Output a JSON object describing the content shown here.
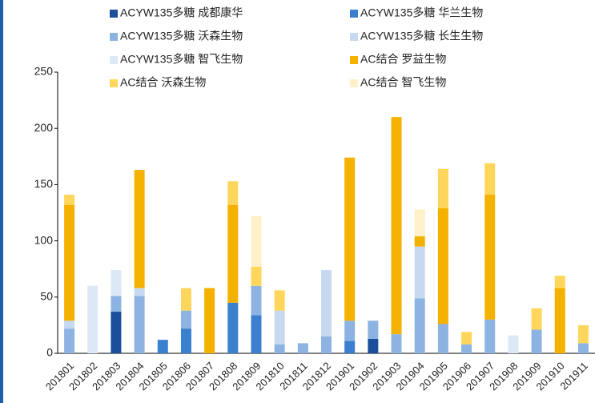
{
  "chart_data": {
    "type": "stacked_bar",
    "categories": [
      "201801",
      "201802",
      "201803",
      "201804",
      "201805",
      "201806",
      "201807",
      "201808",
      "201809",
      "201810",
      "201811",
      "201812",
      "201901",
      "201902",
      "201903",
      "201904",
      "201905",
      "201906",
      "201907",
      "201908",
      "201909",
      "201910",
      "201911"
    ],
    "series": [
      {
        "name": "ACYW135多糖 成都康华",
        "color": "#1b4f9c",
        "values": [
          0,
          0,
          37,
          0,
          0,
          0,
          0,
          0,
          0,
          0,
          0,
          0,
          0,
          13,
          0,
          0,
          0,
          0,
          0,
          0,
          0,
          0,
          0
        ]
      },
      {
        "name": "ACYW135多糖 华兰生物",
        "color": "#3b80cf",
        "values": [
          0,
          0,
          0,
          0,
          12,
          22,
          0,
          45,
          34,
          0,
          0,
          0,
          11,
          0,
          0,
          0,
          0,
          0,
          0,
          0,
          0,
          0,
          0
        ]
      },
      {
        "name": "ACYW135多糖 沃森生物",
        "color": "#8db3e2",
        "values": [
          22,
          0,
          14,
          51,
          0,
          16,
          0,
          0,
          26,
          8,
          9,
          15,
          18,
          16,
          17,
          49,
          26,
          8,
          30,
          0,
          21,
          0,
          9
        ]
      },
      {
        "name": "ACYW135多糖 长生生物",
        "color": "#c6d9f0",
        "values": [
          7,
          0,
          0,
          7,
          0,
          0,
          0,
          0,
          0,
          30,
          0,
          59,
          0,
          0,
          0,
          46,
          0,
          0,
          0,
          0,
          0,
          0,
          0
        ]
      },
      {
        "name": "ACYW135多糖 智飞生物",
        "color": "#dde8f6",
        "values": [
          0,
          60,
          23,
          0,
          0,
          0,
          0,
          0,
          0,
          0,
          0,
          0,
          0,
          0,
          0,
          0,
          0,
          0,
          0,
          16,
          0,
          0,
          0
        ]
      },
      {
        "name": "AC结合 罗益生物",
        "color": "#f5b100",
        "values": [
          103,
          0,
          0,
          105,
          0,
          0,
          58,
          87,
          0,
          0,
          0,
          0,
          145,
          0,
          193,
          9,
          103,
          0,
          111,
          0,
          0,
          58,
          0
        ]
      },
      {
        "name": "AC结合 沃森生物",
        "color": "#ffd65c",
        "values": [
          9,
          0,
          0,
          0,
          0,
          20,
          0,
          21,
          17,
          18,
          0,
          0,
          0,
          0,
          0,
          0,
          35,
          11,
          28,
          0,
          19,
          11,
          16
        ]
      },
      {
        "name": "AC结合 智飞生物",
        "color": "#fff0c9",
        "values": [
          0,
          0,
          0,
          0,
          0,
          0,
          0,
          0,
          45,
          0,
          0,
          0,
          0,
          0,
          0,
          24,
          0,
          0,
          0,
          0,
          0,
          0,
          0
        ]
      }
    ],
    "ylim": [
      0,
      250
    ],
    "yticks": [
      0,
      50,
      100,
      150,
      200,
      250
    ],
    "legend": "top"
  }
}
